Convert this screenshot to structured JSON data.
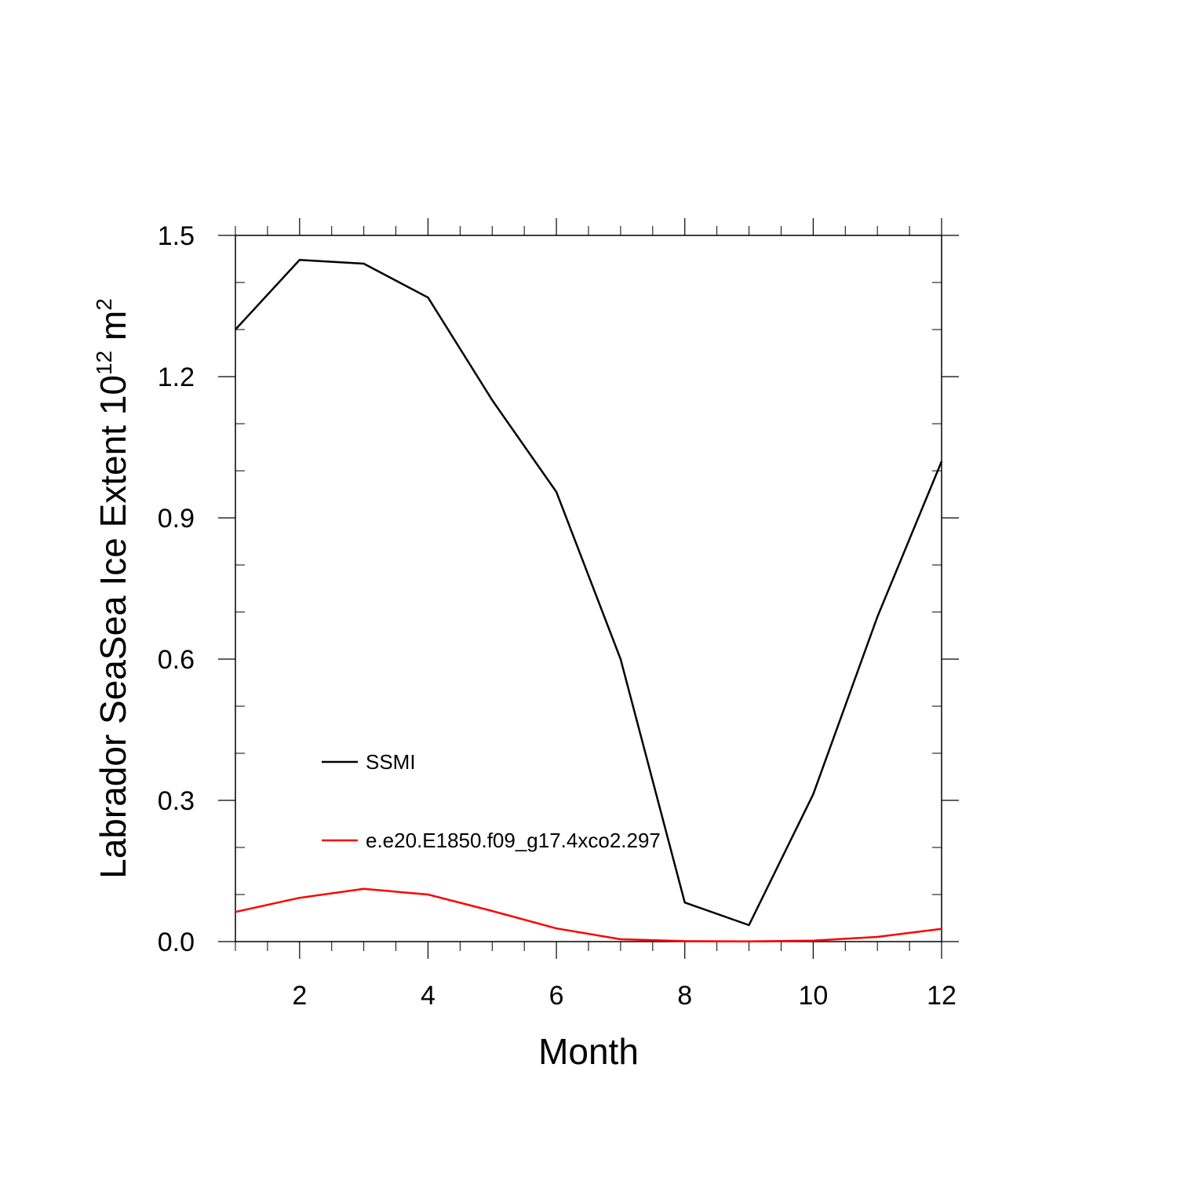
{
  "chart_data": {
    "type": "line",
    "xlabel": "Month",
    "ylabel": {
      "text": "Labrador SeaSea Ice Extent 10",
      "superscript_1": "12",
      "unit": " m",
      "superscript_2": "2"
    },
    "xlim": [
      1,
      12
    ],
    "ylim": [
      0,
      1.5
    ],
    "x_ticks": [
      2,
      4,
      6,
      8,
      10,
      12
    ],
    "x_tick_labels": [
      "2",
      "4",
      "6",
      "8",
      "10",
      "12"
    ],
    "y_ticks": [
      0,
      0.3,
      0.6,
      0.9,
      1.2,
      1.5
    ],
    "y_tick_labels": [
      "0.0",
      "0.3",
      "0.6",
      "0.9",
      "1.2",
      "1.5"
    ],
    "grid": false,
    "x": [
      1,
      2,
      3,
      4,
      5,
      6,
      7,
      8,
      9,
      10,
      11,
      12
    ],
    "series": [
      {
        "name": "SSMI",
        "color": "#000000",
        "values": [
          1.3,
          1.448,
          1.44,
          1.368,
          1.15,
          0.955,
          0.6,
          0.083,
          0.035,
          0.313,
          0.69,
          1.02
        ]
      },
      {
        "name": "e.e20.E1850.f09_g17.4xco2.297",
        "color": "#ff0000",
        "values": [
          0.063,
          0.093,
          0.112,
          0.1,
          0.065,
          0.028,
          0.005,
          0.001,
          0.0005,
          0.002,
          0.01,
          0.027
        ]
      }
    ]
  }
}
